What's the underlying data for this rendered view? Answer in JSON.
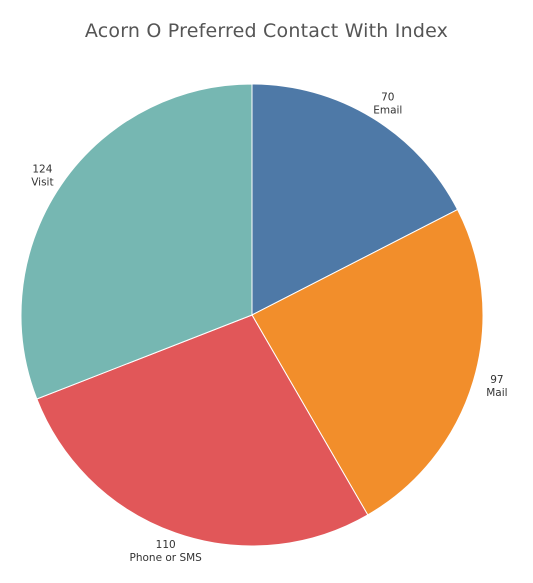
{
  "chart_data": {
    "type": "pie",
    "title": "Acorn O Preferred Contact With Index",
    "start_position": "top",
    "direction": "clockwise",
    "slices": [
      {
        "label": "Email",
        "value": 70,
        "value_label": "70",
        "color": "#4e79a7"
      },
      {
        "label": "Mail",
        "value": 97,
        "value_label": "97",
        "color": "#f28e2b"
      },
      {
        "label": "Phone or SMS",
        "value": 110,
        "value_label": "110",
        "color": "#e15759"
      },
      {
        "label": "Visit",
        "value": 124,
        "value_label": "124",
        "color": "#76b7b2"
      }
    ]
  }
}
